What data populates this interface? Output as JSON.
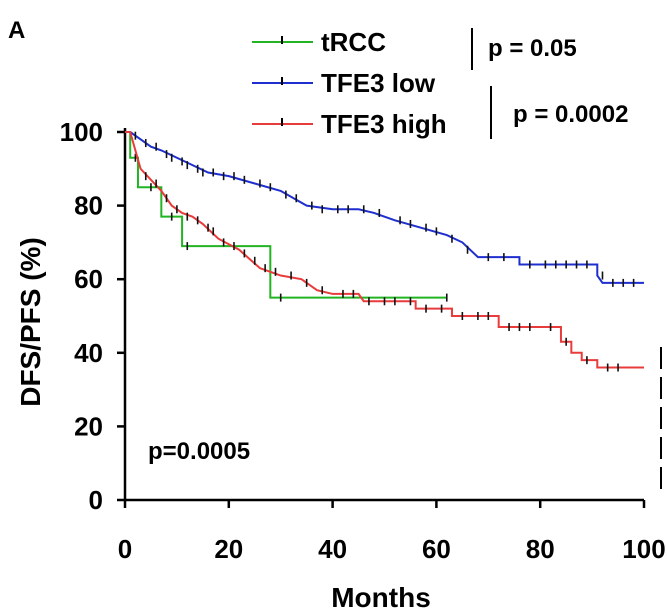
{
  "panel_label": "A",
  "chart_data": {
    "type": "line",
    "xlabel": "Months",
    "ylabel": "DFS/PFS (%)",
    "xlim": [
      0,
      100
    ],
    "ylim": [
      0,
      100
    ],
    "xticks": [
      0,
      20,
      40,
      60,
      80,
      100
    ],
    "yticks": [
      0,
      20,
      40,
      60,
      80,
      100
    ],
    "grid": false,
    "legend_position": "top",
    "annotations": {
      "overall_p": "p=0.0005",
      "p_trcc_vs_low": "p = 0.05",
      "p_low_vs_high": "p = 0.0002"
    },
    "series": [
      {
        "name": "tRCC",
        "color": "#22b422",
        "points": [
          [
            0,
            100
          ],
          [
            1,
            100
          ],
          [
            1,
            93
          ],
          [
            2.5,
            93
          ],
          [
            2.5,
            85
          ],
          [
            7,
            85
          ],
          [
            7,
            77
          ],
          [
            11,
            77
          ],
          [
            11,
            69
          ],
          [
            28,
            69
          ],
          [
            28,
            55
          ],
          [
            62,
            55
          ]
        ],
        "censors": [
          [
            2,
            93
          ],
          [
            5,
            85
          ],
          [
            9,
            77
          ],
          [
            12,
            69
          ],
          [
            30,
            55
          ],
          [
            62,
            55
          ]
        ]
      },
      {
        "name": "TFE3 low",
        "color": "#1f2fcf",
        "points": [
          [
            0,
            100
          ],
          [
            1,
            100
          ],
          [
            3,
            98
          ],
          [
            5,
            96
          ],
          [
            7,
            95
          ],
          [
            10,
            93
          ],
          [
            13,
            91
          ],
          [
            16,
            89
          ],
          [
            20,
            88
          ],
          [
            25,
            86
          ],
          [
            30,
            84
          ],
          [
            35,
            80
          ],
          [
            40,
            79
          ],
          [
            45,
            79
          ],
          [
            48,
            78
          ],
          [
            52,
            76
          ],
          [
            57,
            74
          ],
          [
            62,
            72
          ],
          [
            65,
            70
          ],
          [
            68,
            66
          ],
          [
            76,
            66
          ],
          [
            76,
            64
          ],
          [
            91,
            64
          ],
          [
            91,
            61
          ],
          [
            92,
            59
          ],
          [
            100,
            59
          ]
        ],
        "censors": [
          [
            2,
            99
          ],
          [
            4,
            97
          ],
          [
            6,
            96
          ],
          [
            8,
            94
          ],
          [
            9,
            93
          ],
          [
            11,
            92
          ],
          [
            12,
            91
          ],
          [
            14,
            90
          ],
          [
            15,
            89
          ],
          [
            17,
            89
          ],
          [
            19,
            88
          ],
          [
            21,
            88
          ],
          [
            23,
            87
          ],
          [
            26,
            86
          ],
          [
            28,
            85
          ],
          [
            31,
            83
          ],
          [
            33,
            82
          ],
          [
            36,
            80
          ],
          [
            38,
            79
          ],
          [
            41,
            79
          ],
          [
            43,
            79
          ],
          [
            46,
            79
          ],
          [
            49,
            78
          ],
          [
            53,
            76
          ],
          [
            55,
            75
          ],
          [
            58,
            74
          ],
          [
            60,
            73
          ],
          [
            63,
            71
          ],
          [
            66,
            68
          ],
          [
            70,
            66
          ],
          [
            73,
            66
          ],
          [
            78,
            64
          ],
          [
            81,
            64
          ],
          [
            83,
            64
          ],
          [
            85,
            64
          ],
          [
            87,
            64
          ],
          [
            89,
            64
          ],
          [
            92,
            61
          ],
          [
            94,
            59
          ],
          [
            96,
            59
          ],
          [
            98,
            59
          ]
        ]
      },
      {
        "name": "TFE3 high",
        "color": "#e83b3b",
        "points": [
          [
            0,
            100
          ],
          [
            1,
            100
          ],
          [
            2,
            95
          ],
          [
            3,
            90
          ],
          [
            5,
            87
          ],
          [
            7,
            84
          ],
          [
            9,
            80
          ],
          [
            11,
            78
          ],
          [
            13,
            77
          ],
          [
            15,
            75
          ],
          [
            18,
            71
          ],
          [
            22,
            68
          ],
          [
            26,
            63
          ],
          [
            28,
            62
          ],
          [
            30,
            61
          ],
          [
            34,
            60
          ],
          [
            37,
            57
          ],
          [
            40,
            56
          ],
          [
            45,
            56
          ],
          [
            46,
            54
          ],
          [
            56,
            54
          ],
          [
            56,
            52
          ],
          [
            63,
            52
          ],
          [
            63,
            50
          ],
          [
            72,
            50
          ],
          [
            72,
            47
          ],
          [
            84,
            47
          ],
          [
            84,
            43
          ],
          [
            86,
            43
          ],
          [
            86,
            40
          ],
          [
            88,
            40
          ],
          [
            88,
            38
          ],
          [
            91,
            38
          ],
          [
            91,
            36
          ],
          [
            100,
            36
          ]
        ],
        "censors": [
          [
            4,
            88
          ],
          [
            6,
            86
          ],
          [
            8,
            82
          ],
          [
            10,
            79
          ],
          [
            12,
            77
          ],
          [
            14,
            76
          ],
          [
            16,
            74
          ],
          [
            17,
            73
          ],
          [
            19,
            70
          ],
          [
            21,
            69
          ],
          [
            23,
            67
          ],
          [
            25,
            65
          ],
          [
            27,
            63
          ],
          [
            29,
            62
          ],
          [
            32,
            61
          ],
          [
            35,
            59
          ],
          [
            38,
            57
          ],
          [
            42,
            56
          ],
          [
            44,
            56
          ],
          [
            47,
            54
          ],
          [
            50,
            54
          ],
          [
            52,
            54
          ],
          [
            55,
            54
          ],
          [
            58,
            52
          ],
          [
            61,
            52
          ],
          [
            65,
            50
          ],
          [
            68,
            50
          ],
          [
            70,
            50
          ],
          [
            74,
            47
          ],
          [
            76,
            47
          ],
          [
            78,
            47
          ],
          [
            82,
            47
          ],
          [
            85,
            43
          ],
          [
            89,
            38
          ],
          [
            93,
            36
          ],
          [
            95,
            36
          ]
        ]
      }
    ]
  }
}
